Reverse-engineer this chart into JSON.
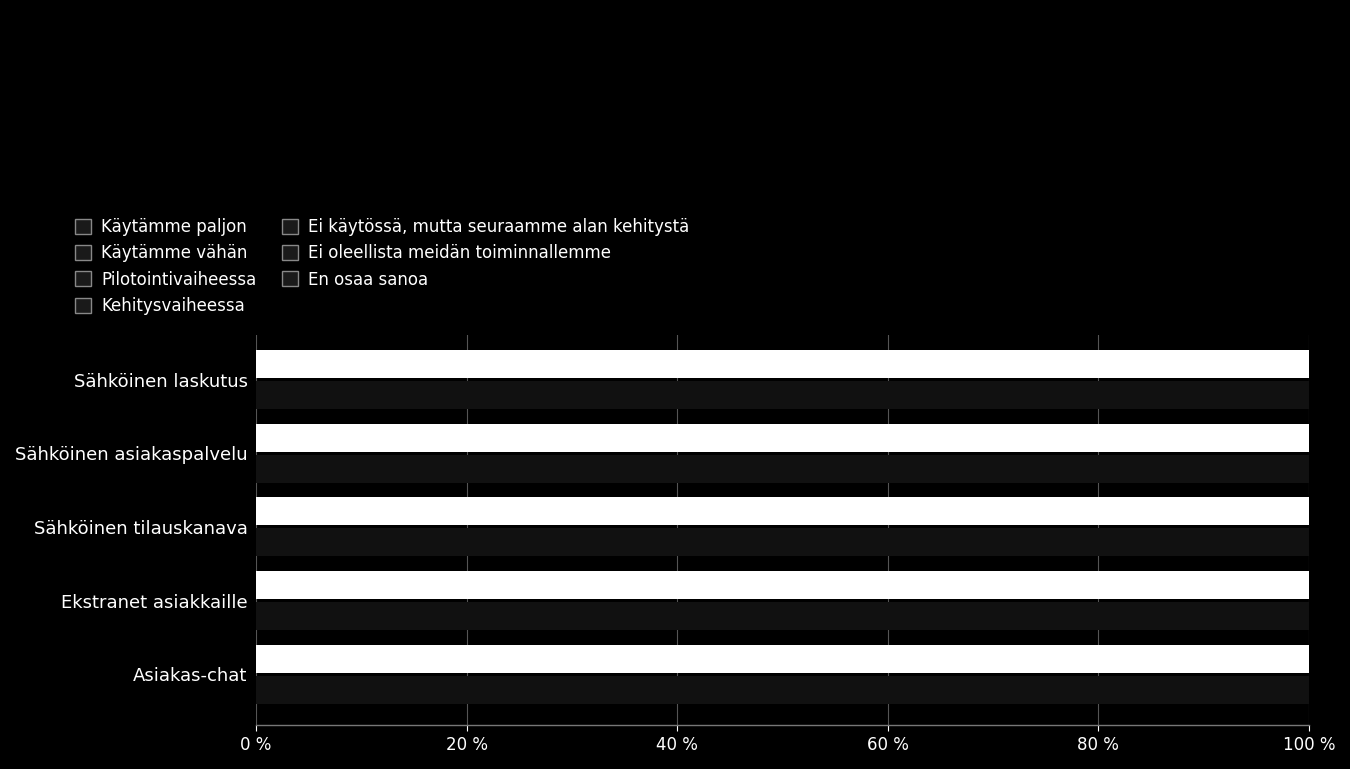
{
  "categories": [
    "Sähköinen laskutus",
    "Sähköinen asiakaspalvelu",
    "Sähköinen tilauskanava",
    "Ekstranet asiakkaille",
    "Asiakas-chat"
  ],
  "legend_labels": [
    "Käytämme paljon",
    "Käytämme vähän",
    "Pilotointivaiheessa",
    "Kehitysvaiheessa",
    "Ei käytössä, mutta seuraamme alan kehitystä",
    "Ei oleellista meidän toiminnallemme",
    "En osaa sanoa"
  ],
  "legend_square_color": "#1a1a1a",
  "legend_square_edge": "#888888",
  "background_color": "#000000",
  "text_color": "#ffffff",
  "bar_color_top": "#ffffff",
  "bar_color_bottom": "#111111",
  "bar_height": 0.38,
  "bar_gap": 0.04,
  "xlim": [
    0,
    100
  ],
  "xticks": [
    0,
    20,
    40,
    60,
    80,
    100
  ],
  "xtick_labels": [
    "0 %",
    "20 %",
    "40 %",
    "60 %",
    "80 %",
    "100 %"
  ],
  "legend_fontsize": 12,
  "tick_fontsize": 12,
  "yticklabel_fontsize": 13,
  "grid_color": "#555555",
  "spine_color": "#777777",
  "legend_ncol": 2,
  "n_categories": 5
}
